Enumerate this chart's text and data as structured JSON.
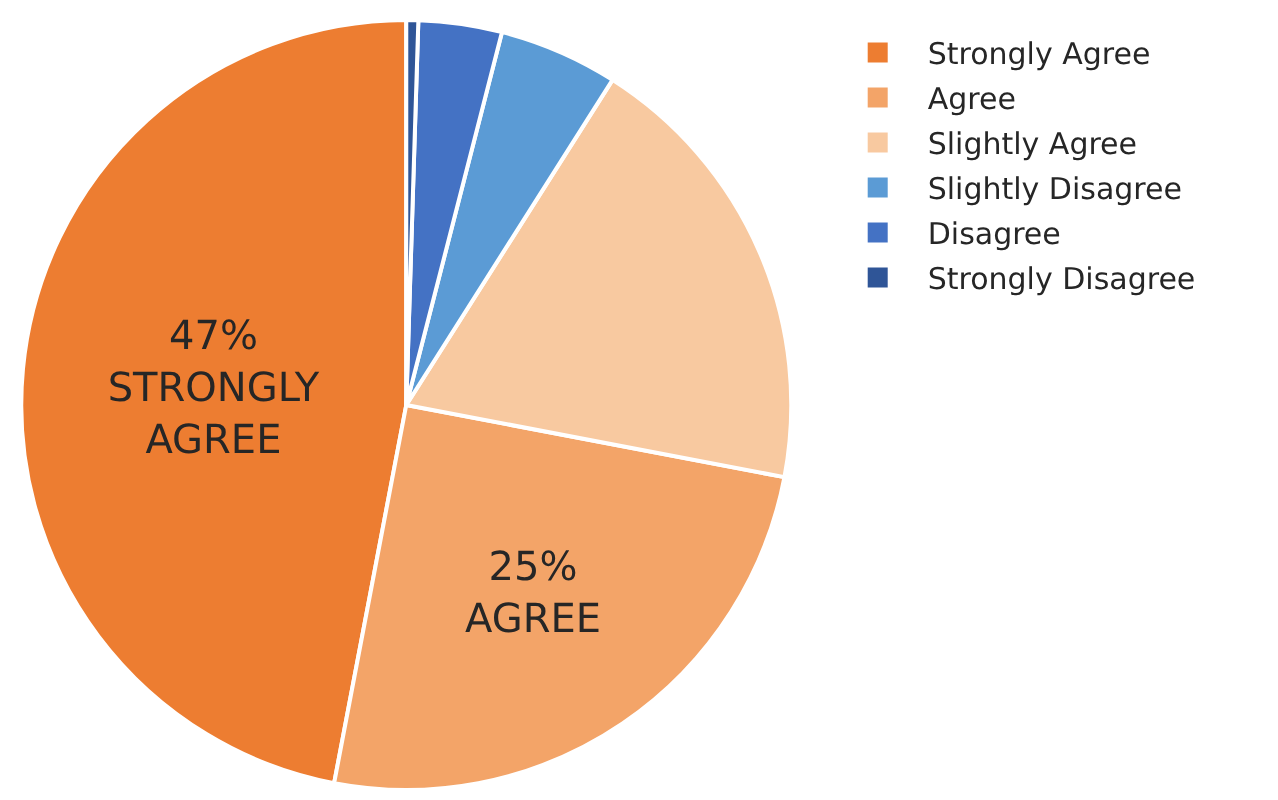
{
  "chart_data": {
    "type": "pie",
    "categories": [
      "Strongly Agree",
      "Agree",
      "Slightly Agree",
      "Slightly Disagree",
      "Disagree",
      "Strongly Disagree"
    ],
    "values": [
      47,
      25,
      19,
      5,
      3.5,
      0.5
    ],
    "colors": [
      "#ed7d31",
      "#f3a468",
      "#f8c9a0",
      "#5b9bd5",
      "#4472c4",
      "#2f5597"
    ],
    "value_labels": [
      "47%\nSTRONGLY\nAGREE",
      "25%\nAGREE",
      null,
      null,
      null,
      null
    ],
    "legend": "right"
  }
}
